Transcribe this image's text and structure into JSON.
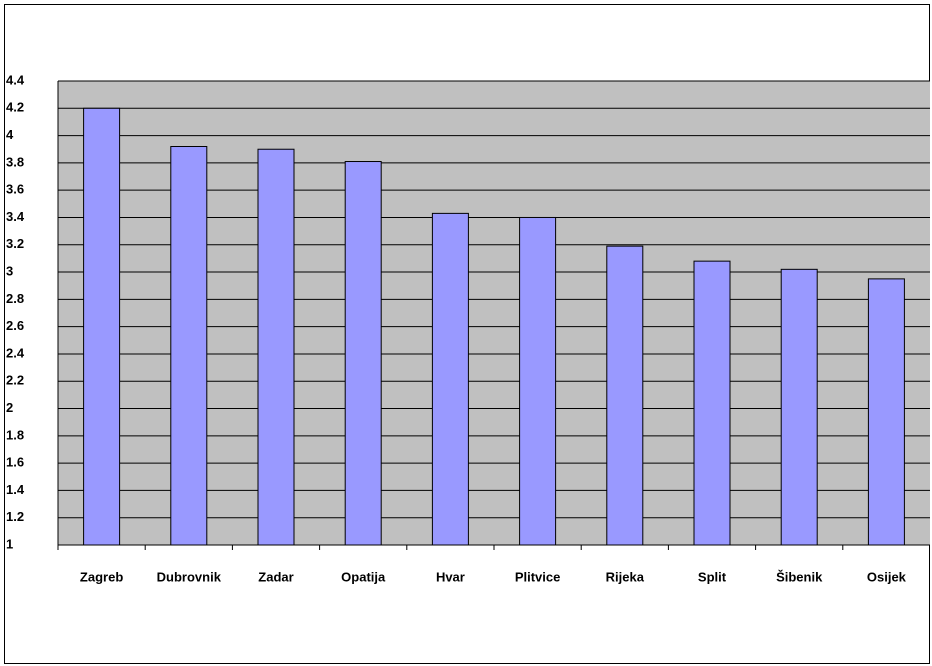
{
  "chart_data": {
    "type": "bar",
    "categories": [
      "Zagreb",
      "Dubrovnik",
      "Zadar",
      "Opatija",
      "Hvar",
      "Plitvice",
      "Rijeka",
      "Split",
      "Šibenik",
      "Osijek"
    ],
    "values": [
      4.2,
      3.92,
      3.9,
      3.81,
      3.43,
      3.4,
      3.19,
      3.08,
      3.02,
      2.95
    ],
    "color": "#9999ff",
    "ylim": [
      1,
      4.4
    ],
    "yticks": [
      1,
      1.2,
      1.4,
      1.6,
      1.8,
      2,
      2.2,
      2.4,
      2.6,
      2.8,
      3,
      3.2,
      3.4,
      3.6,
      3.8,
      4,
      4.2,
      4.4
    ],
    "grid": true
  }
}
